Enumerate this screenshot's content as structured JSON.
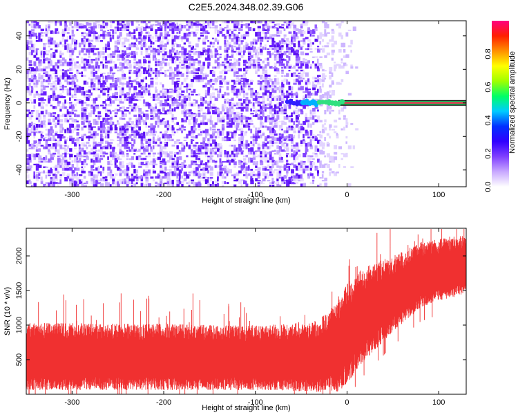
{
  "title": "C2E5.2024.348.02.39.G06",
  "chart_data": [
    {
      "type": "heatmap",
      "xlabel": "Height of straight line (km)",
      "ylabel": "Frequency (Hz)",
      "xlim": [
        -350,
        130
      ],
      "ylim": [
        -50,
        49
      ],
      "xticks": [
        -300,
        -200,
        -100,
        0,
        100
      ],
      "yticks": [
        -40,
        -20,
        0,
        20,
        40
      ],
      "colorbar": {
        "label": "Normalized spectral amplitude",
        "range": [
          0,
          1
        ],
        "ticks": [
          0.0,
          0.2,
          0.4,
          0.6,
          0.8
        ],
        "colormap": [
          "#ffffff",
          "#c8a8ff",
          "#7f3fff",
          "#3000ff",
          "#0030ff",
          "#00ccff",
          "#00ff66",
          "#a0ff00",
          "#ffff00",
          "#ff9000",
          "#ff2000",
          "#ff0080"
        ]
      },
      "features": [
        {
          "name": "noise",
          "x_range": [
            -350,
            -60
          ],
          "freq_range": [
            -50,
            49
          ],
          "amplitude": 0.1
        },
        {
          "name": "fading noise",
          "x_range": [
            -60,
            10
          ],
          "freq_range": [
            -50,
            49
          ],
          "amplitude": 0.05
        },
        {
          "name": "carrier line",
          "x_range": [
            -55,
            130
          ],
          "freq": 0,
          "amplitude": [
            0.3,
            0.95
          ]
        }
      ]
    },
    {
      "type": "line",
      "xlabel": "Height of straight line (km)",
      "ylabel": "SNR (10 * v/v)",
      "xlim": [
        -350,
        130
      ],
      "ylim": [
        0,
        2400
      ],
      "xticks": [
        -300,
        -200,
        -100,
        0,
        100
      ],
      "yticks": [
        500,
        1000,
        1500,
        2000
      ],
      "color": "#f03030",
      "envelope": {
        "x": [
          -350,
          -300,
          -250,
          -200,
          -150,
          -100,
          -60,
          -30,
          -10,
          0,
          20,
          50,
          80,
          100,
          130
        ],
        "lower": [
          60,
          60,
          60,
          60,
          60,
          60,
          50,
          30,
          30,
          150,
          500,
          900,
          1250,
          1350,
          1450
        ],
        "upper": [
          1030,
          1030,
          1020,
          1020,
          1000,
          1000,
          1020,
          1080,
          1350,
          1650,
          1850,
          2000,
          2200,
          2250,
          2300
        ]
      }
    }
  ]
}
